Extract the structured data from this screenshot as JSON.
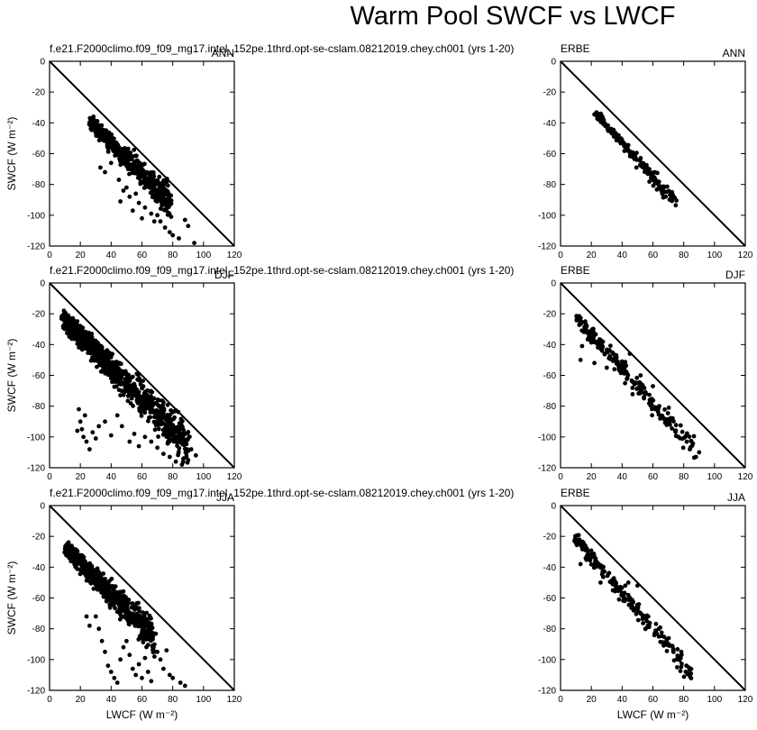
{
  "figure": {
    "title": "Warm Pool SWCF vs LWCF",
    "xlabel": "LWCF (W m⁻²)",
    "ylabel": "SWCF (W m⁻²)"
  },
  "chart_data": [
    {
      "type": "scatter",
      "panel": "model-ANN",
      "left_label": "f.e21.F2000climo.f09_f09_mg17.intel_152pe.1thrd.opt-se-cslam.08212019.chey.ch001 (yrs 1-20)",
      "season": "ANN",
      "xlim": [
        0,
        120
      ],
      "ylim": [
        -120,
        0
      ],
      "xticks": [
        0,
        20,
        40,
        60,
        80,
        100,
        120
      ],
      "yticks": [
        0,
        -20,
        -40,
        -60,
        -80,
        -100,
        -120
      ],
      "reference_line": "y = -x",
      "cloud": {
        "seed": 11,
        "n": 560,
        "x": [
          27,
          78
        ],
        "y_start": -40,
        "y_end": -92,
        "widths": [
          5,
          16
        ],
        "sparse": [
          [
            33,
            -69
          ],
          [
            36,
            -72
          ],
          [
            40,
            -66
          ],
          [
            45,
            -77
          ],
          [
            52,
            -88
          ],
          [
            58,
            -92
          ],
          [
            62,
            -95
          ],
          [
            66,
            -99
          ],
          [
            70,
            -100
          ],
          [
            72,
            -104
          ],
          [
            75,
            -108
          ],
          [
            78,
            -111
          ],
          [
            80,
            -113
          ],
          [
            84,
            -115
          ],
          [
            88,
            -103
          ],
          [
            90,
            -107
          ],
          [
            94,
            -118
          ],
          [
            68,
            -104
          ],
          [
            56,
            -86
          ],
          [
            50,
            -82
          ],
          [
            48,
            -84
          ],
          [
            46,
            -91
          ],
          [
            54,
            -97
          ],
          [
            60,
            -102
          ]
        ]
      }
    },
    {
      "type": "scatter",
      "panel": "obs-ANN",
      "left_label": "ERBE",
      "season": "ANN",
      "xlim": [
        0,
        120
      ],
      "ylim": [
        -120,
        0
      ],
      "xticks": [
        0,
        20,
        40,
        60,
        80,
        100,
        120
      ],
      "yticks": [
        0,
        -20,
        -40,
        -60,
        -80,
        -100,
        -120
      ],
      "reference_line": "y = -x",
      "cloud": {
        "seed": 21,
        "n": 180,
        "x": [
          23,
          75
        ],
        "y_start": -34,
        "y_end": -92,
        "widths": [
          3,
          8
        ],
        "sparse": []
      }
    },
    {
      "type": "scatter",
      "panel": "model-DJF",
      "left_label": "f.e21.F2000climo.f09_f09_mg17.intel_152pe.1thrd.opt-se-cslam.08212019.chey.ch001 (yrs 1-20)",
      "season": "DJF",
      "xlim": [
        0,
        120
      ],
      "ylim": [
        -120,
        0
      ],
      "xticks": [
        0,
        20,
        40,
        60,
        80,
        100,
        120
      ],
      "yticks": [
        0,
        -20,
        -40,
        -60,
        -80,
        -100,
        -120
      ],
      "reference_line": "y = -x",
      "cloud": {
        "seed": 31,
        "n": 900,
        "x": [
          9,
          90
        ],
        "y_start": -24,
        "y_end": -105,
        "widths": [
          9,
          20
        ],
        "sparse": [
          [
            19,
            -82
          ],
          [
            20,
            -90
          ],
          [
            21,
            -95
          ],
          [
            22,
            -100
          ],
          [
            24,
            -103
          ],
          [
            26,
            -108
          ],
          [
            18,
            -96
          ],
          [
            23,
            -86
          ],
          [
            28,
            -97
          ],
          [
            30,
            -101
          ],
          [
            32,
            -93
          ],
          [
            36,
            -90
          ],
          [
            40,
            -99
          ],
          [
            44,
            -86
          ],
          [
            47,
            -93
          ],
          [
            52,
            -103
          ],
          [
            55,
            -98
          ],
          [
            58,
            -106
          ],
          [
            62,
            -100
          ],
          [
            66,
            -103
          ],
          [
            70,
            -107
          ],
          [
            74,
            -111
          ],
          [
            78,
            -113
          ],
          [
            82,
            -116
          ],
          [
            86,
            -118
          ],
          [
            90,
            -115
          ],
          [
            95,
            -112
          ],
          [
            92,
            -108
          ]
        ]
      }
    },
    {
      "type": "scatter",
      "panel": "obs-DJF",
      "left_label": "ERBE",
      "season": "DJF",
      "xlim": [
        0,
        120
      ],
      "ylim": [
        -120,
        0
      ],
      "xticks": [
        0,
        20,
        40,
        60,
        80,
        100,
        120
      ],
      "yticks": [
        0,
        -20,
        -40,
        -60,
        -80,
        -100,
        -120
      ],
      "reference_line": "y = -x",
      "cloud": {
        "seed": 41,
        "n": 200,
        "x": [
          11,
          88
        ],
        "y_start": -23,
        "y_end": -110,
        "widths": [
          6,
          11
        ],
        "sparse": [
          [
            13,
            -50
          ],
          [
            14,
            -41
          ],
          [
            22,
            -52
          ],
          [
            27,
            -44
          ],
          [
            35,
            -56
          ],
          [
            30,
            -55
          ],
          [
            40,
            -51
          ],
          [
            45,
            -46
          ],
          [
            52,
            -60
          ],
          [
            60,
            -67
          ],
          [
            88,
            -113
          ],
          [
            84,
            -108
          ],
          [
            90,
            -110
          ]
        ]
      }
    },
    {
      "type": "scatter",
      "panel": "model-JJA",
      "left_label": "f.e21.F2000climo.f09_f09_mg17.intel_152pe.1thrd.opt-se-cslam.08212019.chey.ch001 (yrs 1-20)",
      "season": "JJA",
      "xlim": [
        0,
        120
      ],
      "ylim": [
        -120,
        0
      ],
      "xticks": [
        0,
        20,
        40,
        60,
        80,
        100,
        120
      ],
      "yticks": [
        0,
        -20,
        -40,
        -60,
        -80,
        -100,
        -120
      ],
      "reference_line": "y = -x",
      "cloud": {
        "seed": 51,
        "n": 640,
        "x": [
          11,
          68
        ],
        "y_start": -28,
        "y_end": -86,
        "widths": [
          6,
          16
        ],
        "sparse": [
          [
            30,
            -72
          ],
          [
            32,
            -80
          ],
          [
            34,
            -88
          ],
          [
            36,
            -95
          ],
          [
            38,
            -104
          ],
          [
            40,
            -108
          ],
          [
            42,
            -112
          ],
          [
            44,
            -115
          ],
          [
            46,
            -100
          ],
          [
            48,
            -92
          ],
          [
            50,
            -88
          ],
          [
            52,
            -97
          ],
          [
            54,
            -106
          ],
          [
            56,
            -110
          ],
          [
            58,
            -103
          ],
          [
            60,
            -112
          ],
          [
            62,
            -99
          ],
          [
            64,
            -108
          ],
          [
            66,
            -114
          ],
          [
            70,
            -95
          ],
          [
            72,
            -100
          ],
          [
            74,
            -106
          ],
          [
            76,
            -94
          ],
          [
            78,
            -110
          ],
          [
            80,
            -112
          ],
          [
            85,
            -115
          ],
          [
            88,
            -117
          ],
          [
            26,
            -78
          ],
          [
            24,
            -72
          ]
        ]
      }
    },
    {
      "type": "scatter",
      "panel": "obs-JJA",
      "left_label": "ERBE",
      "season": "JJA",
      "xlim": [
        0,
        120
      ],
      "ylim": [
        -120,
        0
      ],
      "xticks": [
        0,
        20,
        40,
        60,
        80,
        100,
        120
      ],
      "yticks": [
        0,
        -20,
        -40,
        -60,
        -80,
        -100,
        -120
      ],
      "reference_line": "y = -x",
      "cloud": {
        "seed": 61,
        "n": 210,
        "x": [
          10,
          85
        ],
        "y_start": -22,
        "y_end": -109,
        "widths": [
          5,
          10
        ],
        "sparse": [
          [
            13,
            -38
          ],
          [
            18,
            -33
          ],
          [
            22,
            -40
          ],
          [
            26,
            -50
          ],
          [
            34,
            -55
          ],
          [
            36,
            -54
          ],
          [
            38,
            -61
          ],
          [
            42,
            -52
          ],
          [
            44,
            -50
          ],
          [
            50,
            -52
          ]
        ]
      }
    }
  ]
}
